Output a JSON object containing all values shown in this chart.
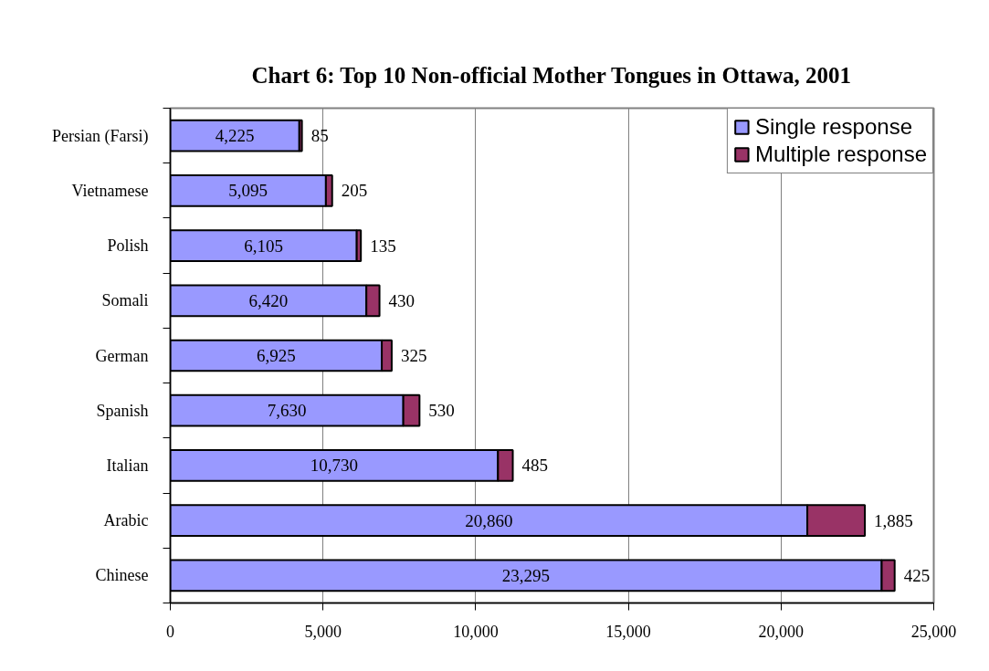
{
  "chart_data": {
    "type": "bar",
    "orientation": "horizontal",
    "stacked": true,
    "title": "Chart 6: Top 10 Non-official Mother Tongues in Ottawa, 2001",
    "categories": [
      "Persian (Farsi)",
      "Vietnamese",
      "Polish",
      "Somali",
      "German",
      "Spanish",
      "Italian",
      "Arabic",
      "Chinese"
    ],
    "series": [
      {
        "name": "Single response",
        "color": "#9999ff",
        "values": [
          4225,
          5095,
          6105,
          6420,
          6925,
          7630,
          10730,
          20860,
          23295
        ],
        "value_labels": [
          "4,225",
          "5,095",
          "6,105",
          "6,420",
          "6,925",
          "7,630",
          "10,730",
          "20,860",
          "23,295"
        ]
      },
      {
        "name": "Multiple response",
        "color": "#993366",
        "values": [
          85,
          205,
          135,
          430,
          325,
          530,
          485,
          1885,
          425
        ],
        "value_labels": [
          "85",
          "205",
          "135",
          "430",
          "325",
          "530",
          "485",
          "1,885",
          "425"
        ]
      }
    ],
    "xlim": [
      0,
      25000
    ],
    "xticks": [
      0,
      {
        "value": 5000,
        "label": "5,000"
      },
      {
        "value": 10000,
        "label": "10,000"
      },
      {
        "value": 15000,
        "label": "15,000"
      },
      {
        "value": 20000,
        "label": "20,000"
      },
      {
        "value": 25000,
        "label": "25,000"
      }
    ],
    "grid": "x",
    "legend": "top right"
  }
}
